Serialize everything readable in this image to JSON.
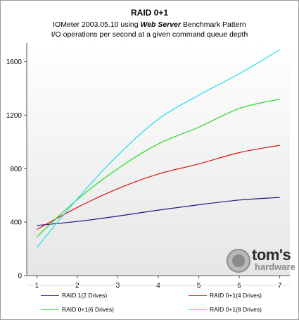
{
  "chart_data": {
    "type": "line",
    "title": "RAID 0+1",
    "subtitle_prefix": "IOMeter 2003.05.10 using ",
    "subtitle_emphasis": "Web Server",
    "subtitle_suffix": " Benchmark Pattern",
    "subtitle2": "I/O operations per second at a given command queue depth",
    "xlabel": "",
    "ylabel": "",
    "x": [
      1,
      2,
      3,
      4,
      5,
      6,
      7
    ],
    "x_tick_labels": [
      "1",
      "2",
      "3",
      "4",
      "5",
      "6",
      "7"
    ],
    "y_tick_labels": [
      "0",
      "400",
      "800",
      "1200",
      "1600"
    ],
    "y_ticks": [
      0,
      400,
      800,
      1200,
      1600
    ],
    "xlim": [
      0.75,
      7.25
    ],
    "ylim": [
      0,
      1740
    ],
    "grid": false,
    "legend_position": "bottom",
    "background_gradient": [
      "#ffffff",
      "#e6e6e6"
    ],
    "series": [
      {
        "name": "RAID 1(2 Drives)",
        "color": "#1a1a8c",
        "values": [
          375,
          405,
          445,
          490,
          530,
          565,
          585
        ]
      },
      {
        "name": "RAID 0+1(4 Drives)",
        "color": "#dd1111",
        "values": [
          345,
          510,
          650,
          760,
          835,
          920,
          975
        ]
      },
      {
        "name": "RAID 0+1(6 Drives)",
        "color": "#22dd22",
        "values": [
          290,
          570,
          800,
          985,
          1110,
          1250,
          1320
        ]
      },
      {
        "name": "RAID 0+1(8 Drives)",
        "color": "#22ddee",
        "values": [
          210,
          575,
          900,
          1170,
          1350,
          1510,
          1690
        ]
      }
    ]
  },
  "logo": {
    "line1": "tom's",
    "line2": "hardware"
  }
}
